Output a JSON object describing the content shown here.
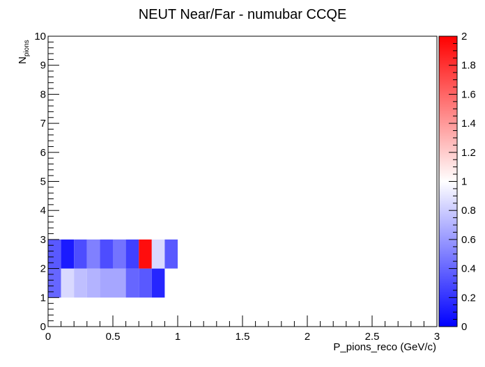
{
  "chart_data": {
    "type": "heatmap",
    "title": "NEUT Near/Far - numubar CCQE",
    "xlabel": "P_pions_reco (GeV/c)",
    "ylabel_main": "N",
    "ylabel_sub": "pions",
    "xlim": [
      0,
      3
    ],
    "ylim": [
      0,
      10
    ],
    "x_bin_width": 0.1,
    "y_bin_width": 1,
    "x_ticks": [
      0,
      0.5,
      1,
      1.5,
      2,
      2.5,
      3
    ],
    "x_tick_labels": [
      "0",
      "0.5",
      "1",
      "1.5",
      "2",
      "2.5",
      "3"
    ],
    "y_ticks": [
      0,
      1,
      2,
      3,
      4,
      5,
      6,
      7,
      8,
      9,
      10
    ],
    "y_tick_labels": [
      "0",
      "1",
      "2",
      "3",
      "4",
      "5",
      "6",
      "7",
      "8",
      "9",
      "10"
    ],
    "zlim": [
      0,
      2
    ],
    "z_ticks": [
      0,
      0.2,
      0.4,
      0.6,
      0.8,
      1,
      1.2,
      1.4,
      1.6,
      1.8,
      2
    ],
    "z_tick_labels": [
      "0",
      "0.2",
      "0.4",
      "0.6",
      "0.8",
      "1",
      "1.2",
      "1.4",
      "1.6",
      "1.8",
      "2"
    ],
    "colorscale": [
      "#0000ff",
      "#ffffff",
      "#ff0000"
    ],
    "cells": [
      {
        "x0": 0.0,
        "y0": 1,
        "z": 0.4
      },
      {
        "x0": 0.1,
        "y0": 1,
        "z": 0.85
      },
      {
        "x0": 0.2,
        "y0": 1,
        "z": 0.75
      },
      {
        "x0": 0.3,
        "y0": 1,
        "z": 0.7
      },
      {
        "x0": 0.4,
        "y0": 1,
        "z": 0.65
      },
      {
        "x0": 0.5,
        "y0": 1,
        "z": 0.65
      },
      {
        "x0": 0.6,
        "y0": 1,
        "z": 0.4
      },
      {
        "x0": 0.7,
        "y0": 1,
        "z": 0.35
      },
      {
        "x0": 0.8,
        "y0": 1,
        "z": 0.15
      },
      {
        "x0": 0.0,
        "y0": 2,
        "z": 0.35
      },
      {
        "x0": 0.1,
        "y0": 2,
        "z": 0.1
      },
      {
        "x0": 0.2,
        "y0": 2,
        "z": 0.3
      },
      {
        "x0": 0.3,
        "y0": 2,
        "z": 0.5
      },
      {
        "x0": 0.4,
        "y0": 2,
        "z": 0.3
      },
      {
        "x0": 0.5,
        "y0": 2,
        "z": 0.45
      },
      {
        "x0": 0.6,
        "y0": 2,
        "z": 0.25
      },
      {
        "x0": 0.7,
        "y0": 2,
        "z": 1.95
      },
      {
        "x0": 0.8,
        "y0": 2,
        "z": 0.85
      },
      {
        "x0": 0.9,
        "y0": 2,
        "z": 0.35
      }
    ]
  }
}
